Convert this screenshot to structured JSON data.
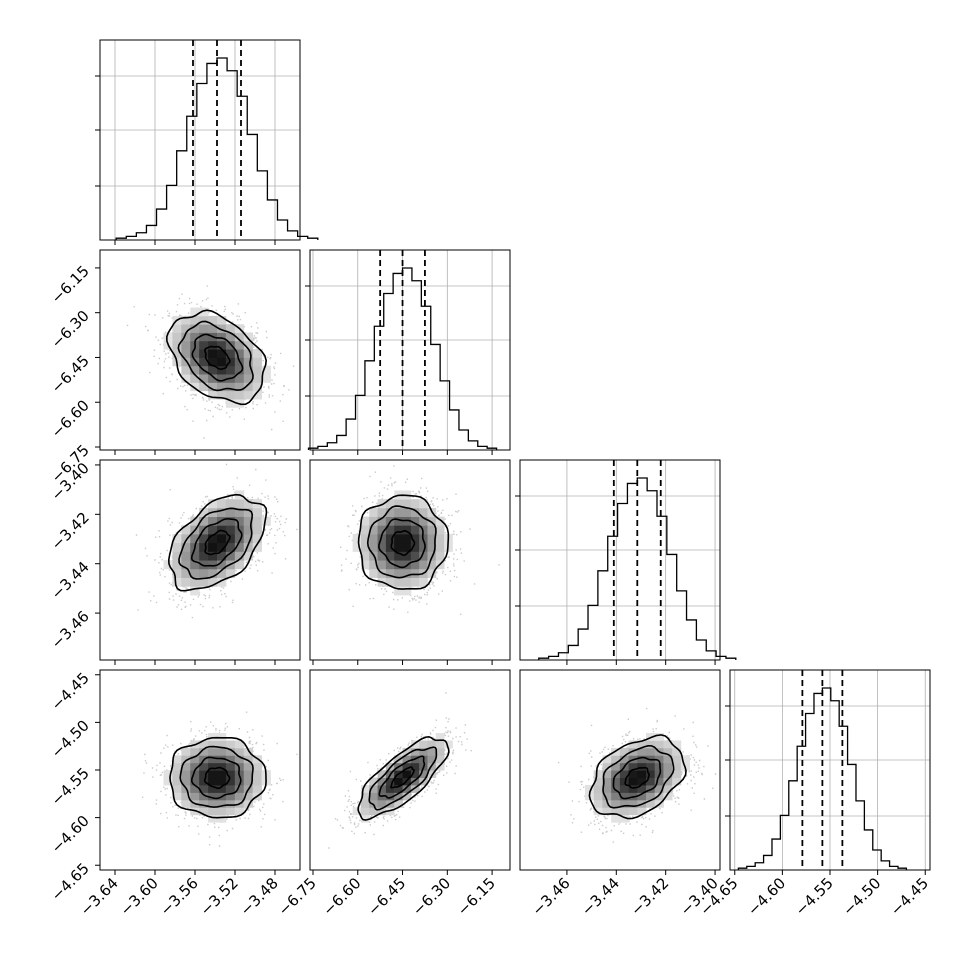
{
  "chart_data": {
    "type": "corner",
    "grid": true,
    "parameters": [
      {
        "range": [
          -3.655,
          -3.455
        ],
        "ticks": [
          -3.64,
          -3.6,
          -3.56,
          -3.52,
          -3.48
        ],
        "tick_labels": [
          "−3.64",
          "−3.60",
          "−3.56",
          "−3.52",
          "−3.48"
        ],
        "mean": -3.538,
        "std": 0.024,
        "quantiles": [
          -3.562,
          -3.538,
          -3.514
        ],
        "hist_peak": 1.0
      },
      {
        "range": [
          -6.76,
          -6.09
        ],
        "ticks": [
          -6.75,
          -6.6,
          -6.45,
          -6.3,
          -6.15
        ],
        "tick_labels": [
          "−6.75",
          "−6.60",
          "−6.45",
          "−6.30",
          "−6.15"
        ],
        "mean": -6.45,
        "std": 0.075,
        "quantiles": [
          -6.525,
          -6.45,
          -6.375
        ],
        "hist_peak": 1.0
      },
      {
        "range": [
          -3.479,
          -3.398
        ],
        "ticks": [
          -3.46,
          -3.44,
          -3.42,
          -3.4
        ],
        "tick_labels": [
          "−3.46",
          "−3.44",
          "−3.42",
          "−3.40"
        ],
        "mean": -3.4315,
        "std": 0.0095,
        "quantiles": [
          -3.441,
          -3.4315,
          -3.422
        ],
        "hist_peak": 1.0
      },
      {
        "range": [
          -4.655,
          -4.445
        ],
        "ticks": [
          -4.65,
          -4.6,
          -4.55,
          -4.5,
          -4.45
        ],
        "tick_labels": [
          "−4.65",
          "−4.60",
          "−4.55",
          "−4.50",
          "−4.45"
        ],
        "mean": -4.558,
        "std": 0.021,
        "quantiles": [
          -4.579,
          -4.558,
          -4.537
        ],
        "hist_peak": 1.0
      }
    ],
    "correlations": [
      {
        "pair": [
          0,
          1
        ],
        "rho": -0.35
      },
      {
        "pair": [
          0,
          2
        ],
        "rho": 0.45
      },
      {
        "pair": [
          1,
          2
        ],
        "rho": 0.0
      },
      {
        "pair": [
          0,
          3
        ],
        "rho": 0.0
      },
      {
        "pair": [
          1,
          3
        ],
        "rho": 0.75
      },
      {
        "pair": [
          2,
          3
        ],
        "rho": 0.35
      }
    ],
    "contour_levels": [
      0.5,
      1.0,
      1.5,
      2.0
    ],
    "histogram_bins": 20,
    "hist_shape": [
      0.01,
      0.02,
      0.04,
      0.08,
      0.17,
      0.3,
      0.49,
      0.68,
      0.86,
      0.97,
      1.0,
      0.93,
      0.79,
      0.58,
      0.38,
      0.22,
      0.11,
      0.05,
      0.02,
      0.01
    ],
    "colors": {
      "hist": "#000000",
      "contour": "#000000",
      "points": "#9e9e9e",
      "grid": "#b0b0b0"
    }
  }
}
